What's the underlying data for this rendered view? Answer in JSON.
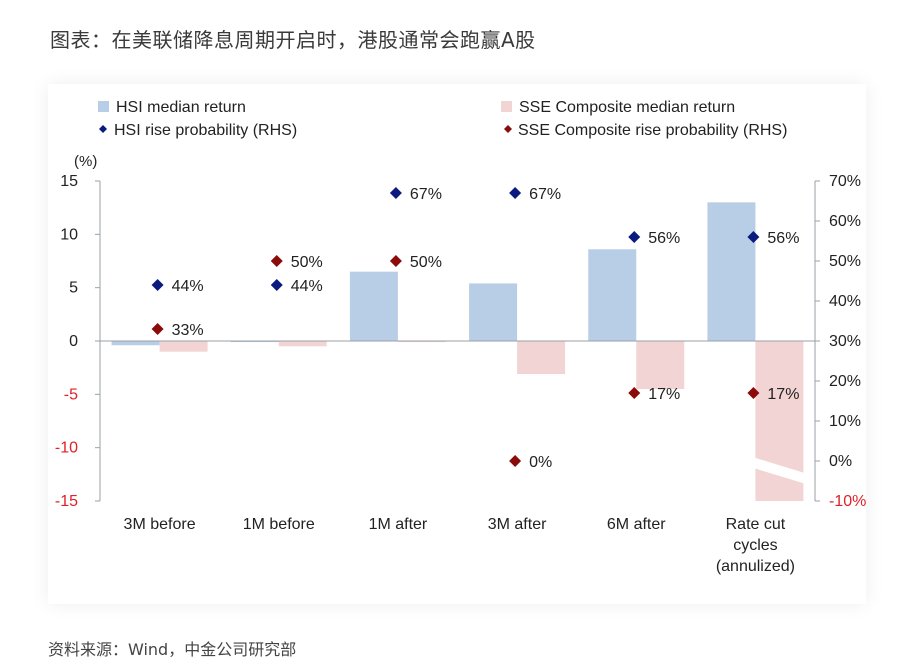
{
  "page_title": "图表：在美联储降息周期开启时，港股通常会跑赢A股",
  "source_note": "资料来源：Wind，中金公司研究部",
  "colors": {
    "hsi_bar": "#b8cde6",
    "sse_bar": "#f2d4d4",
    "hsi_dot": "#0a1a7e",
    "sse_dot": "#8b0a0a",
    "neg_label": "#e0202a",
    "axis": "#9aa0a6"
  },
  "chart_data": {
    "type": "bar",
    "left_axis_unit": "(%)",
    "categories": [
      "3M before",
      "1M before",
      "1M after",
      "3M after",
      "6M after",
      "Rate cut cycles (annulized)"
    ],
    "category_label_lines": [
      [
        "3M before"
      ],
      [
        "1M before"
      ],
      [
        "1M after"
      ],
      [
        "3M after"
      ],
      [
        "6M after"
      ],
      [
        "Rate cut",
        "cycles",
        "(annulized)"
      ]
    ],
    "series": [
      {
        "name": "HSI median return",
        "kind": "bar",
        "axis": "left",
        "values": [
          -0.4,
          -0.1,
          6.5,
          5.4,
          8.6,
          13.0
        ]
      },
      {
        "name": "SSE Composite median return",
        "kind": "bar",
        "axis": "left",
        "values": [
          -1.0,
          -0.5,
          -0.1,
          -3.1,
          -4.5,
          -15.0
        ]
      },
      {
        "name": "HSI rise probability (RHS)",
        "kind": "marker",
        "axis": "right",
        "values": [
          44,
          44,
          67,
          67,
          56,
          56
        ],
        "labels": [
          "44%",
          "44%",
          "67%",
          "67%",
          "56%",
          "56%"
        ]
      },
      {
        "name": "SSE Composite rise probability (RHS)",
        "kind": "marker",
        "axis": "right",
        "values": [
          33,
          50,
          50,
          0,
          17,
          17
        ],
        "labels": [
          "33%",
          "50%",
          "50%",
          "0%",
          "17%",
          "17%"
        ]
      }
    ],
    "left_axis": {
      "min": -15,
      "max": 15,
      "ticks": [
        15,
        10,
        5,
        0,
        -5,
        -10,
        -15
      ],
      "tick_labels": [
        "15",
        "10",
        "5",
        "0",
        "-5",
        "-10",
        "-15"
      ]
    },
    "right_axis": {
      "min": -10,
      "max": 70,
      "ticks": [
        70,
        60,
        50,
        40,
        30,
        20,
        10,
        0,
        -10
      ],
      "tick_labels": [
        "70%",
        "60%",
        "50%",
        "40%",
        "30%",
        "20%",
        "10%",
        "0%",
        "-10%"
      ]
    },
    "legend_position": "top",
    "grid": false
  }
}
